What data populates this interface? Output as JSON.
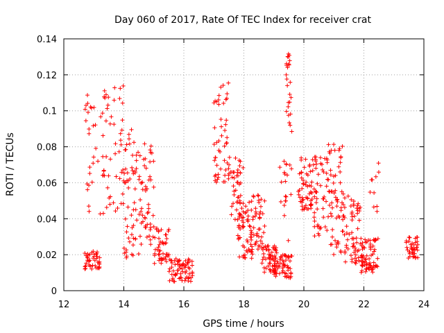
{
  "chart_data": {
    "type": "scatter",
    "title": "Day 060 of 2017, Rate Of TEC Index for receiver crat",
    "xlabel": "GPS time / hours",
    "ylabel": "ROTI / TECUs",
    "xlim": [
      12,
      24
    ],
    "ylim": [
      0,
      0.14
    ],
    "x_ticks": [
      12,
      14,
      16,
      18,
      20,
      22,
      24
    ],
    "y_ticks": [
      0,
      0.02,
      0.04,
      0.06,
      0.08,
      0.1,
      0.12,
      0.14
    ],
    "x_tick_labels": [
      "12",
      "14",
      "16",
      "18",
      "20",
      "22",
      "24"
    ],
    "y_tick_labels": [
      "0",
      "0.02",
      "0.04",
      "0.06",
      "0.08",
      "0.1",
      "0.12",
      "0.14"
    ],
    "grid": true,
    "marker": "plus",
    "color": "#ff0000",
    "clusters": [
      {
        "x0": 12.7,
        "x1": 13.2,
        "y0": 0.012,
        "y1": 0.022,
        "n": 45
      },
      {
        "x0": 12.7,
        "x1": 13.3,
        "y0": 0.04,
        "y1": 0.11,
        "n": 30
      },
      {
        "x0": 13.3,
        "x1": 14.0,
        "y0": 0.04,
        "y1": 0.114,
        "n": 50
      },
      {
        "x0": 14.0,
        "x1": 14.5,
        "y0": 0.018,
        "y1": 0.09,
        "n": 55
      },
      {
        "x0": 14.5,
        "x1": 15.0,
        "y0": 0.025,
        "y1": 0.085,
        "n": 55
      },
      {
        "x0": 15.0,
        "x1": 15.5,
        "y0": 0.015,
        "y1": 0.035,
        "n": 45
      },
      {
        "x0": 15.5,
        "x1": 16.3,
        "y0": 0.005,
        "y1": 0.018,
        "n": 70
      },
      {
        "x0": 17.0,
        "x1": 17.5,
        "y0": 0.057,
        "y1": 0.116,
        "n": 50
      },
      {
        "x0": 17.5,
        "x1": 18.0,
        "y0": 0.035,
        "y1": 0.075,
        "n": 50
      },
      {
        "x0": 17.8,
        "x1": 18.3,
        "y0": 0.018,
        "y1": 0.05,
        "n": 55
      },
      {
        "x0": 18.3,
        "x1": 18.7,
        "y0": 0.022,
        "y1": 0.055,
        "n": 40
      },
      {
        "x0": 18.6,
        "x1": 19.1,
        "y0": 0.01,
        "y1": 0.025,
        "n": 55
      },
      {
        "x0": 19.0,
        "x1": 19.6,
        "y0": 0.007,
        "y1": 0.02,
        "n": 60
      },
      {
        "x0": 19.4,
        "x1": 19.6,
        "y0": 0.085,
        "y1": 0.135,
        "n": 25
      },
      {
        "x0": 19.2,
        "x1": 19.6,
        "y0": 0.025,
        "y1": 0.072,
        "n": 20
      },
      {
        "x0": 19.8,
        "x1": 20.3,
        "y0": 0.045,
        "y1": 0.075,
        "n": 55
      },
      {
        "x0": 20.3,
        "x1": 20.8,
        "y0": 0.03,
        "y1": 0.075,
        "n": 50
      },
      {
        "x0": 20.8,
        "x1": 21.3,
        "y0": 0.02,
        "y1": 0.082,
        "n": 60
      },
      {
        "x0": 21.3,
        "x1": 21.9,
        "y0": 0.015,
        "y1": 0.055,
        "n": 65
      },
      {
        "x0": 21.9,
        "x1": 22.5,
        "y0": 0.01,
        "y1": 0.03,
        "n": 70
      },
      {
        "x0": 22.2,
        "x1": 22.5,
        "y0": 0.035,
        "y1": 0.074,
        "n": 10
      },
      {
        "x0": 23.4,
        "x1": 23.8,
        "y0": 0.018,
        "y1": 0.03,
        "n": 40
      }
    ]
  }
}
